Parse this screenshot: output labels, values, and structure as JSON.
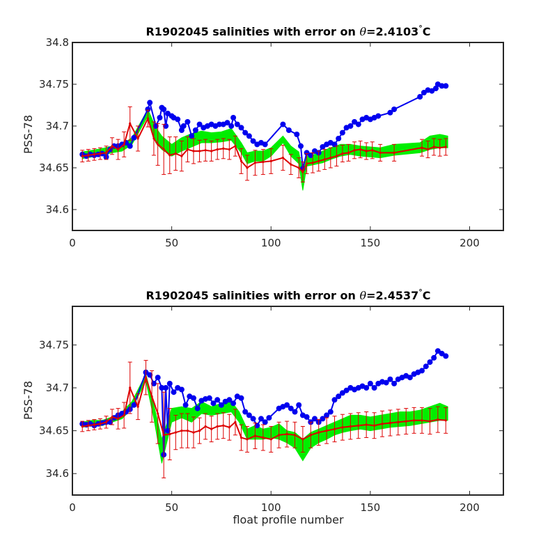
{
  "chart_data": [
    {
      "type": "line",
      "title_prefix": "R1902045 salinities with error on ",
      "title_symbol": "θ",
      "title_suffix": "=2.4103",
      "title_degree": "°",
      "title_unit": "C",
      "ylabel": "PSS-78",
      "xlabel": "",
      "xlim": [
        0,
        217
      ],
      "ylim": [
        34.575,
        34.8
      ],
      "xticks": [
        0,
        50,
        100,
        150,
        200
      ],
      "yticks": [
        34.6,
        34.65,
        34.7,
        34.75,
        34.8
      ],
      "ytick_labels": [
        "34.6",
        "34.65",
        "34.7",
        "34.75",
        "34.8"
      ],
      "grid": false,
      "series": [
        {
          "role": "band",
          "color": "#00ee00",
          "x": [
            5,
            10,
            15,
            20,
            25,
            30,
            38,
            42,
            45,
            50,
            55,
            60,
            65,
            70,
            75,
            80,
            85,
            88,
            92,
            96,
            100,
            106,
            110,
            114,
            116,
            118,
            122,
            126,
            130,
            135,
            140,
            145,
            150,
            155,
            162,
            175,
            180,
            185,
            189
          ],
          "lower": [
            34.661,
            34.663,
            34.665,
            34.668,
            34.67,
            34.678,
            34.712,
            34.68,
            34.672,
            34.664,
            34.67,
            34.675,
            34.68,
            34.68,
            34.681,
            34.683,
            34.668,
            34.655,
            34.658,
            34.658,
            34.664,
            34.68,
            34.664,
            34.655,
            34.623,
            34.652,
            34.654,
            34.656,
            34.66,
            34.664,
            34.666,
            34.664,
            34.663,
            34.662,
            34.665,
            34.668,
            34.672,
            34.674,
            34.674
          ],
          "upper": [
            34.669,
            34.671,
            34.673,
            34.676,
            34.678,
            34.686,
            34.72,
            34.698,
            34.688,
            34.678,
            34.686,
            34.691,
            34.694,
            34.692,
            34.693,
            34.697,
            34.68,
            34.668,
            34.67,
            34.67,
            34.674,
            34.688,
            34.676,
            34.669,
            34.645,
            34.664,
            34.666,
            34.67,
            34.674,
            34.678,
            34.678,
            34.676,
            34.675,
            34.674,
            34.678,
            34.68,
            34.688,
            34.69,
            34.688
          ]
        },
        {
          "role": "points",
          "color": "#0000ee",
          "x": [
            5,
            7,
            9,
            11,
            13,
            15,
            17,
            19,
            21,
            23,
            25,
            27,
            29,
            31,
            38,
            39,
            42,
            44,
            45,
            46,
            47,
            48,
            50,
            51,
            53,
            55,
            56,
            58,
            60,
            62,
            64,
            66,
            68,
            70,
            72,
            74,
            76,
            78,
            80,
            81,
            83,
            85,
            87,
            89,
            91,
            93,
            95,
            97,
            106,
            109,
            113,
            115,
            116,
            118,
            120,
            122,
            124,
            126,
            128,
            130,
            132,
            134,
            136,
            138,
            140,
            142,
            144,
            146,
            148,
            150,
            152,
            154,
            160,
            162,
            175,
            177,
            179,
            181,
            183,
            184,
            186,
            188
          ],
          "y": [
            34.666,
            34.664,
            34.666,
            34.665,
            34.666,
            34.667,
            34.663,
            34.672,
            34.676,
            34.676,
            34.678,
            34.68,
            34.676,
            34.686,
            34.72,
            34.728,
            34.7,
            34.71,
            34.722,
            34.72,
            34.7,
            34.715,
            34.712,
            34.71,
            34.708,
            34.695,
            34.7,
            34.705,
            34.688,
            34.695,
            34.702,
            34.698,
            34.7,
            34.702,
            34.7,
            34.702,
            34.702,
            34.704,
            34.7,
            34.71,
            34.702,
            34.698,
            34.692,
            34.688,
            34.682,
            34.678,
            34.68,
            34.678,
            34.702,
            34.695,
            34.69,
            34.676,
            34.649,
            34.668,
            34.665,
            34.67,
            34.668,
            34.675,
            34.678,
            34.68,
            34.678,
            34.685,
            34.692,
            34.698,
            34.7,
            34.705,
            34.702,
            34.708,
            34.71,
            34.708,
            34.71,
            34.712,
            34.716,
            34.72,
            34.735,
            34.74,
            34.743,
            34.742,
            34.745,
            34.75,
            34.748,
            34.748
          ]
        },
        {
          "role": "line-with-errorbars",
          "color": "#dd0000",
          "x": [
            5,
            8,
            11,
            14,
            17,
            20,
            23,
            26,
            29,
            33,
            38,
            41,
            43,
            46,
            49,
            52,
            55,
            58,
            61,
            64,
            67,
            70,
            73,
            76,
            79,
            82,
            85,
            88,
            92,
            96,
            100,
            106,
            110,
            114,
            116,
            118,
            121,
            124,
            127,
            130,
            133,
            136,
            139,
            142,
            145,
            148,
            151,
            155,
            162,
            176,
            179,
            182,
            185,
            188
          ],
          "y": [
            34.664,
            34.665,
            34.666,
            34.667,
            34.668,
            34.676,
            34.672,
            34.678,
            34.703,
            34.685,
            34.709,
            34.685,
            34.678,
            34.672,
            34.665,
            34.667,
            34.664,
            34.672,
            34.67,
            34.67,
            34.671,
            34.67,
            34.672,
            34.673,
            34.672,
            34.676,
            34.658,
            34.65,
            34.656,
            34.657,
            34.658,
            34.662,
            34.654,
            34.65,
            34.645,
            34.655,
            34.656,
            34.658,
            34.66,
            34.662,
            34.664,
            34.667,
            34.668,
            34.671,
            34.672,
            34.67,
            34.671,
            34.668,
            34.668,
            34.674,
            34.672,
            34.675,
            34.674,
            34.675
          ],
          "err": [
            0.007,
            0.007,
            0.007,
            0.007,
            0.008,
            0.01,
            0.012,
            0.015,
            0.02,
            0.015,
            0.01,
            0.02,
            0.025,
            0.03,
            0.022,
            0.02,
            0.018,
            0.015,
            0.015,
            0.013,
            0.013,
            0.012,
            0.012,
            0.012,
            0.012,
            0.012,
            0.015,
            0.015,
            0.015,
            0.015,
            0.015,
            0.015,
            0.012,
            0.012,
            0.012,
            0.012,
            0.012,
            0.012,
            0.012,
            0.012,
            0.012,
            0.01,
            0.01,
            0.01,
            0.01,
            0.01,
            0.01,
            0.01,
            0.01,
            0.01,
            0.01,
            0.01,
            0.01,
            0.01
          ]
        }
      ]
    },
    {
      "type": "line",
      "title_prefix": "R1902045 salinities with error on ",
      "title_symbol": "θ",
      "title_suffix": "=2.4537",
      "title_degree": "°",
      "title_unit": "C",
      "ylabel": "PSS-78",
      "xlabel": "float profile number",
      "xlim": [
        0,
        217
      ],
      "ylim": [
        34.575,
        34.795
      ],
      "xticks": [
        0,
        50,
        100,
        150,
        200
      ],
      "yticks": [
        34.6,
        34.65,
        34.7,
        34.75
      ],
      "ytick_labels": [
        "34.6",
        "34.65",
        "34.7",
        "34.75"
      ],
      "grid": false,
      "series": [
        {
          "role": "band",
          "color": "#00ee00",
          "x": [
            5,
            10,
            15,
            20,
            25,
            30,
            37,
            41,
            45,
            50,
            55,
            60,
            65,
            70,
            75,
            80,
            84,
            88,
            92,
            96,
            100,
            104,
            108,
            112,
            116,
            120,
            124,
            128,
            132,
            136,
            140,
            145,
            150,
            155,
            160,
            165,
            170,
            175,
            180,
            185,
            189
          ],
          "lower": [
            34.654,
            34.656,
            34.656,
            34.66,
            34.664,
            34.676,
            34.708,
            34.664,
            34.612,
            34.66,
            34.665,
            34.66,
            34.67,
            34.668,
            34.67,
            34.672,
            34.66,
            34.64,
            34.64,
            34.64,
            34.642,
            34.64,
            34.636,
            34.63,
            34.615,
            34.63,
            34.636,
            34.64,
            34.645,
            34.648,
            34.65,
            34.652,
            34.65,
            34.652,
            34.654,
            34.655,
            34.656,
            34.658,
            34.66,
            34.662,
            34.662
          ],
          "upper": [
            34.66,
            34.662,
            34.662,
            34.666,
            34.672,
            34.684,
            34.716,
            34.68,
            34.64,
            34.676,
            34.678,
            34.676,
            34.684,
            34.678,
            34.682,
            34.684,
            34.672,
            34.652,
            34.656,
            34.652,
            34.654,
            34.658,
            34.65,
            34.648,
            34.64,
            34.648,
            34.652,
            34.656,
            34.66,
            34.664,
            34.668,
            34.668,
            34.666,
            34.668,
            34.67,
            34.672,
            34.672,
            34.674,
            34.678,
            34.682,
            34.678
          ]
        },
        {
          "role": "points",
          "color": "#0000ee",
          "x": [
            5,
            7,
            9,
            11,
            13,
            15,
            17,
            19,
            21,
            23,
            25,
            27,
            29,
            31,
            37,
            39,
            41,
            43,
            45,
            46,
            47,
            48,
            49,
            51,
            53,
            55,
            57,
            59,
            61,
            63,
            65,
            67,
            69,
            71,
            73,
            75,
            77,
            79,
            81,
            83,
            85,
            87,
            89,
            91,
            93,
            95,
            97,
            99,
            104,
            106,
            108,
            110,
            112,
            114,
            116,
            118,
            120,
            122,
            124,
            126,
            128,
            130,
            132,
            134,
            136,
            138,
            140,
            142,
            144,
            146,
            148,
            150,
            152,
            154,
            156,
            158,
            160,
            162,
            164,
            166,
            168,
            170,
            172,
            174,
            176,
            178,
            180,
            182,
            184,
            186,
            188
          ],
          "y": [
            34.658,
            34.657,
            34.658,
            34.656,
            34.658,
            34.659,
            34.66,
            34.66,
            34.665,
            34.668,
            34.67,
            34.672,
            34.675,
            34.68,
            34.718,
            34.715,
            34.705,
            34.712,
            34.7,
            34.622,
            34.7,
            34.65,
            34.705,
            34.695,
            34.7,
            34.698,
            34.68,
            34.69,
            34.688,
            34.676,
            34.685,
            34.687,
            34.688,
            34.682,
            34.686,
            34.68,
            34.684,
            34.686,
            34.682,
            34.69,
            34.688,
            34.672,
            34.668,
            34.664,
            34.656,
            34.664,
            34.66,
            34.665,
            34.676,
            34.678,
            34.68,
            34.676,
            34.672,
            34.68,
            34.668,
            34.666,
            34.66,
            34.664,
            34.66,
            34.664,
            34.668,
            34.672,
            34.686,
            34.69,
            34.694,
            34.697,
            34.7,
            34.698,
            34.7,
            34.702,
            34.7,
            34.705,
            34.7,
            34.705,
            34.707,
            34.706,
            34.71,
            34.705,
            34.71,
            34.712,
            34.714,
            34.712,
            34.716,
            34.718,
            34.72,
            34.725,
            34.73,
            34.735,
            34.743,
            34.74,
            34.737
          ]
        },
        {
          "role": "line-with-errorbars",
          "color": "#dd0000",
          "x": [
            5,
            8,
            11,
            14,
            17,
            20,
            23,
            26,
            29,
            33,
            37,
            40,
            43,
            46,
            49,
            52,
            55,
            58,
            61,
            64,
            67,
            70,
            73,
            76,
            79,
            82,
            85,
            88,
            92,
            96,
            100,
            104,
            108,
            112,
            116,
            120,
            124,
            128,
            132,
            136,
            140,
            144,
            148,
            152,
            156,
            160,
            164,
            168,
            172,
            176,
            180,
            184,
            188
          ],
          "y": [
            34.655,
            34.656,
            34.657,
            34.658,
            34.66,
            34.666,
            34.664,
            34.668,
            34.7,
            34.678,
            34.712,
            34.69,
            34.67,
            34.645,
            34.646,
            34.648,
            34.65,
            34.65,
            34.648,
            34.65,
            34.655,
            34.652,
            34.655,
            34.656,
            34.654,
            34.66,
            34.642,
            34.64,
            34.644,
            34.642,
            34.64,
            34.645,
            34.646,
            34.645,
            34.64,
            34.645,
            34.648,
            34.65,
            34.652,
            34.654,
            34.655,
            34.656,
            34.657,
            34.656,
            34.658,
            34.659,
            34.66,
            34.661,
            34.662,
            34.662,
            34.661,
            34.663,
            34.662
          ],
          "err": [
            0.006,
            0.006,
            0.006,
            0.006,
            0.007,
            0.009,
            0.012,
            0.015,
            0.03,
            0.015,
            0.02,
            0.03,
            0.035,
            0.05,
            0.03,
            0.02,
            0.02,
            0.02,
            0.018,
            0.015,
            0.015,
            0.015,
            0.015,
            0.015,
            0.015,
            0.015,
            0.015,
            0.015,
            0.015,
            0.015,
            0.015,
            0.015,
            0.015,
            0.015,
            0.015,
            0.015,
            0.015,
            0.015,
            0.015,
            0.015,
            0.015,
            0.015,
            0.015,
            0.015,
            0.015,
            0.015,
            0.015,
            0.015,
            0.015,
            0.015,
            0.015,
            0.015,
            0.015
          ]
        }
      ]
    }
  ]
}
